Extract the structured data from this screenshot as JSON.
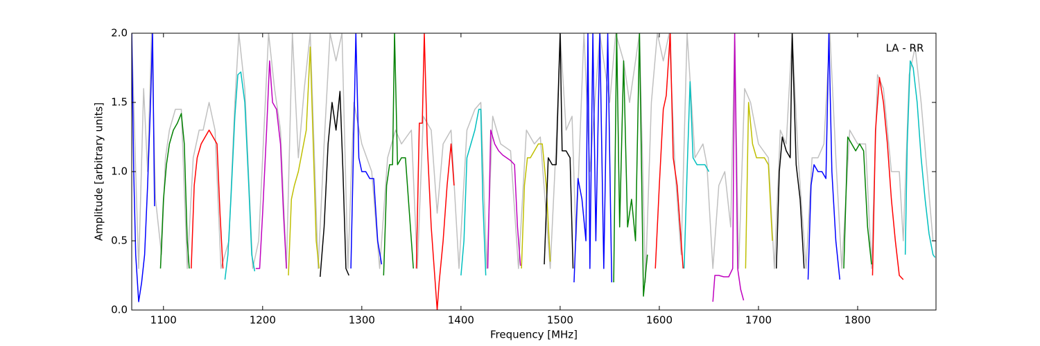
{
  "chart_data": {
    "type": "line",
    "annotation": "LA - RR",
    "xlabel": "Frequency [MHz]",
    "ylabel": "Amplitude [arbitrary units]",
    "xlim": [
      1068,
      1879
    ],
    "ylim": [
      0,
      2
    ],
    "xticks": [
      1100,
      1200,
      1300,
      1400,
      1500,
      1600,
      1700,
      1800
    ],
    "yticks": [
      {
        "value": 0,
        "label": "0.0"
      },
      {
        "value": 0.5,
        "label": "0.5"
      },
      {
        "value": 1,
        "label": "1.0"
      },
      {
        "value": 1.5,
        "label": "1.5"
      },
      {
        "value": 2,
        "label": "2.0"
      }
    ],
    "grid": false,
    "series": [
      {
        "color": "#c0c0c0",
        "x": [
          1068,
          1072,
          1075,
          1080,
          1084,
          1088,
          1092,
          1098,
          1102,
          1106,
          1112,
          1118,
          1124,
          1130,
          1136,
          1140,
          1146,
          1152,
          1158,
          1166,
          1172,
          1176,
          1182,
          1190,
          1196,
          1202,
          1206,
          1212,
          1218,
          1224,
          1230,
          1236,
          1242,
          1248,
          1256,
          1262,
          1268,
          1274,
          1280,
          1286,
          1292,
          1300,
          1310,
          1318,
          1326,
          1334,
          1340,
          1350,
          1356,
          1362,
          1370,
          1376,
          1382,
          1390,
          1398,
          1406,
          1414,
          1420,
          1426,
          1432,
          1440,
          1450,
          1458,
          1466,
          1474,
          1480,
          1490,
          1496,
          1500,
          1506,
          1512,
          1516,
          1524,
          1530,
          1540,
          1550,
          1556,
          1564,
          1570,
          1580,
          1586,
          1592,
          1598,
          1604,
          1610,
          1616,
          1622,
          1628,
          1636,
          1644,
          1648,
          1654,
          1660,
          1666,
          1672,
          1676,
          1680,
          1686,
          1692,
          1700,
          1710,
          1716,
          1722,
          1728,
          1734,
          1740,
          1748,
          1754,
          1760,
          1766,
          1772,
          1778,
          1784,
          1792,
          1800,
          1808,
          1814,
          1820,
          1826,
          1834,
          1842,
          1846,
          1852,
          1858,
          1864,
          1870,
          1876,
          1879
        ],
        "values": [
          2.0,
          1.0,
          0.3,
          1.6,
          1.0,
          2.0,
          0.8,
          0.4,
          1.1,
          1.3,
          1.45,
          1.45,
          0.3,
          1.1,
          1.3,
          1.3,
          1.5,
          1.3,
          0.3,
          0.5,
          1.5,
          2.0,
          1.6,
          0.3,
          0.5,
          1.4,
          2.0,
          1.6,
          1.3,
          0.3,
          2.0,
          1.1,
          1.6,
          2.0,
          0.3,
          1.2,
          2.0,
          1.8,
          2.0,
          0.3,
          1.5,
          1.2,
          1.0,
          0.3,
          1.1,
          1.3,
          1.2,
          1.3,
          0.3,
          1.4,
          1.3,
          0.7,
          1.2,
          1.3,
          0.3,
          1.3,
          1.45,
          1.5,
          0.3,
          1.4,
          1.2,
          1.15,
          0.3,
          1.3,
          1.2,
          1.25,
          0.3,
          1.2,
          2.0,
          1.3,
          1.4,
          0.5,
          2.0,
          1.0,
          2.0,
          1.5,
          2.0,
          1.8,
          1.5,
          2.0,
          0.2,
          1.5,
          2.0,
          1.8,
          2.0,
          1.0,
          0.4,
          2.0,
          1.1,
          1.2,
          1.05,
          0.3,
          0.9,
          1.0,
          0.6,
          2.0,
          0.3,
          1.6,
          1.5,
          1.2,
          1.1,
          0.3,
          1.3,
          1.2,
          2.0,
          1.1,
          0.3,
          1.1,
          1.1,
          1.2,
          2.0,
          1.1,
          0.3,
          1.3,
          1.2,
          1.2,
          0.3,
          1.7,
          1.6,
          1.0,
          1.0,
          0.5,
          1.7,
          1.9,
          1.5,
          1.0,
          0.5,
          0.5
        ]
      },
      {
        "color": "#0000ff",
        "x": [
          1068,
          1070,
          1072,
          1075,
          1078,
          1081,
          1084,
          1087,
          1089,
          1091
        ],
        "values": [
          2.0,
          1.0,
          0.4,
          0.06,
          0.2,
          0.4,
          0.9,
          1.5,
          2.0,
          0.75
        ]
      },
      {
        "color": "#008000",
        "x": [
          1097,
          1100,
          1103,
          1106,
          1110,
          1114,
          1118,
          1121,
          1124,
          1126
        ],
        "values": [
          0.3,
          0.8,
          1.05,
          1.2,
          1.3,
          1.35,
          1.42,
          1.2,
          0.5,
          0.3
        ]
      },
      {
        "color": "#ff0000",
        "x": [
          1128,
          1131,
          1134,
          1138,
          1142,
          1146,
          1150,
          1154,
          1157,
          1160
        ],
        "values": [
          0.3,
          0.9,
          1.1,
          1.2,
          1.25,
          1.3,
          1.25,
          1.2,
          0.7,
          0.3
        ]
      },
      {
        "color": "#00bfbf",
        "x": [
          1162,
          1165,
          1168,
          1172,
          1175,
          1178,
          1182,
          1186,
          1189,
          1192
        ],
        "values": [
          0.22,
          0.4,
          0.8,
          1.4,
          1.7,
          1.72,
          1.5,
          0.9,
          0.4,
          0.28
        ]
      },
      {
        "color": "#bf00bf",
        "x": [
          1193,
          1197,
          1200,
          1204,
          1207,
          1210,
          1214,
          1218,
          1221,
          1224
        ],
        "values": [
          0.3,
          0.3,
          0.7,
          1.3,
          1.8,
          1.5,
          1.45,
          1.2,
          0.7,
          0.3
        ]
      },
      {
        "color": "#bfbf00",
        "x": [
          1226,
          1229,
          1232,
          1236,
          1240,
          1244,
          1248,
          1251,
          1254,
          1257
        ],
        "values": [
          0.25,
          0.8,
          0.9,
          1.0,
          1.15,
          1.3,
          1.9,
          1.2,
          0.5,
          0.3
        ]
      },
      {
        "color": "#000000",
        "x": [
          1258,
          1262,
          1266,
          1270,
          1274,
          1278,
          1281,
          1284,
          1287
        ],
        "values": [
          0.24,
          0.6,
          1.2,
          1.5,
          1.3,
          1.58,
          1.0,
          0.3,
          0.25
        ]
      },
      {
        "color": "#0000ff",
        "x": [
          1289,
          1292,
          1294,
          1297,
          1300,
          1304,
          1308,
          1312,
          1316,
          1320
        ],
        "values": [
          0.3,
          1.3,
          2.0,
          1.1,
          1.0,
          1.0,
          0.95,
          0.95,
          0.5,
          0.33
        ]
      },
      {
        "color": "#008000",
        "x": [
          1322,
          1325,
          1328,
          1331,
          1333,
          1336,
          1340,
          1344,
          1348,
          1352
        ],
        "values": [
          0.25,
          0.9,
          1.05,
          1.05,
          2.0,
          1.05,
          1.1,
          1.1,
          0.7,
          0.3
        ]
      },
      {
        "color": "#ff0000",
        "x": [
          1355,
          1358,
          1361,
          1363,
          1366,
          1370,
          1374,
          1376,
          1378,
          1382,
          1386,
          1390,
          1393
        ],
        "values": [
          0.3,
          1.35,
          1.35,
          2.0,
          1.2,
          0.6,
          0.2,
          0.0,
          0.2,
          0.5,
          0.9,
          1.2,
          0.9
        ]
      },
      {
        "color": "#00bfbf",
        "x": [
          1400,
          1403,
          1406,
          1410,
          1414,
          1418,
          1420,
          1422,
          1425
        ],
        "values": [
          0.25,
          0.5,
          1.1,
          1.2,
          1.3,
          1.45,
          1.45,
          0.8,
          0.25
        ]
      },
      {
        "color": "#bf00bf",
        "x": [
          1427,
          1430,
          1434,
          1438,
          1442,
          1446,
          1450,
          1454,
          1457,
          1460
        ],
        "values": [
          0.3,
          1.3,
          1.2,
          1.15,
          1.12,
          1.1,
          1.08,
          1.05,
          0.6,
          0.32
        ]
      },
      {
        "color": "#bfbf00",
        "x": [
          1461,
          1464,
          1467,
          1470,
          1474,
          1478,
          1482,
          1486,
          1490
        ],
        "values": [
          0.3,
          0.9,
          1.1,
          1.1,
          1.15,
          1.2,
          1.2,
          0.9,
          0.35
        ]
      },
      {
        "color": "#000000",
        "x": [
          1484,
          1488,
          1492,
          1496,
          1500,
          1502,
          1506,
          1510,
          1513
        ],
        "values": [
          0.33,
          1.1,
          1.05,
          1.05,
          2.0,
          1.15,
          1.15,
          1.1,
          0.3
        ]
      },
      {
        "color": "#0000ff",
        "x": [
          1514,
          1518,
          1522,
          1526,
          1528,
          1530,
          1533,
          1536,
          1540,
          1544,
          1548,
          1552
        ],
        "values": [
          0.2,
          0.95,
          0.8,
          0.5,
          2.0,
          0.3,
          2.0,
          0.5,
          2.0,
          0.3,
          2.0,
          0.2
        ]
      },
      {
        "color": "#008000",
        "x": [
          1554,
          1557,
          1560,
          1564,
          1568,
          1572,
          1576,
          1580,
          1584,
          1588
        ],
        "values": [
          0.2,
          2.0,
          0.6,
          1.8,
          0.6,
          0.8,
          0.5,
          2.0,
          0.1,
          0.4
        ]
      },
      {
        "color": "#ff0000",
        "x": [
          1596,
          1600,
          1604,
          1607,
          1611,
          1614,
          1618,
          1622,
          1624
        ],
        "values": [
          0.3,
          0.9,
          1.45,
          1.55,
          2.0,
          1.1,
          0.9,
          0.5,
          0.3
        ]
      },
      {
        "color": "#00bfbf",
        "x": [
          1625,
          1628,
          1631,
          1634,
          1638,
          1642,
          1646,
          1650
        ],
        "values": [
          0.3,
          1.0,
          1.65,
          1.1,
          1.05,
          1.05,
          1.05,
          1.0
        ]
      },
      {
        "color": "#bf00bf",
        "x": [
          1654,
          1656,
          1660,
          1665,
          1670,
          1674,
          1676,
          1679,
          1682,
          1685
        ],
        "values": [
          0.06,
          0.25,
          0.25,
          0.24,
          0.24,
          0.3,
          2.0,
          0.3,
          0.15,
          0.07
        ]
      },
      {
        "color": "#bfbf00",
        "x": [
          1687,
          1690,
          1694,
          1698,
          1702,
          1706,
          1710,
          1714
        ],
        "values": [
          0.3,
          1.5,
          1.2,
          1.1,
          1.1,
          1.1,
          1.05,
          0.5
        ]
      },
      {
        "color": "#000000",
        "x": [
          1718,
          1721,
          1724,
          1728,
          1732,
          1734,
          1738,
          1742,
          1746
        ],
        "values": [
          0.3,
          1.0,
          1.25,
          1.15,
          1.1,
          2.0,
          1.05,
          0.8,
          0.3
        ]
      },
      {
        "color": "#0000ff",
        "x": [
          1750,
          1753,
          1756,
          1760,
          1764,
          1768,
          1771,
          1774,
          1778,
          1782
        ],
        "values": [
          0.22,
          0.9,
          1.05,
          1.0,
          1.0,
          0.95,
          2.0,
          1.0,
          0.5,
          0.22
        ]
      },
      {
        "color": "#008000",
        "x": [
          1786,
          1790,
          1794,
          1798,
          1802,
          1806,
          1810,
          1814
        ],
        "values": [
          0.3,
          1.25,
          1.2,
          1.15,
          1.2,
          1.15,
          0.6,
          0.33
        ]
      },
      {
        "color": "#ff0000",
        "x": [
          1815,
          1818,
          1822,
          1826,
          1830,
          1834,
          1838,
          1842,
          1846
        ],
        "values": [
          0.25,
          1.3,
          1.68,
          1.5,
          1.2,
          0.8,
          0.5,
          0.25,
          0.22
        ]
      },
      {
        "color": "#00bfbf",
        "x": [
          1848,
          1850,
          1853,
          1856,
          1860,
          1864,
          1868,
          1872,
          1876,
          1878
        ],
        "values": [
          0.4,
          1.2,
          1.8,
          1.75,
          1.5,
          1.1,
          0.8,
          0.55,
          0.4,
          0.38
        ]
      }
    ]
  }
}
